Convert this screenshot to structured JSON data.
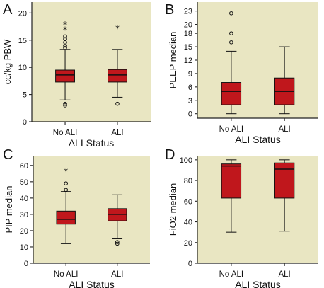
{
  "chart_data": [
    {
      "panel": "A",
      "type": "box",
      "xlabel": "ALI Status",
      "ylabel": "cc/kg PBW",
      "ylim": [
        0,
        22
      ],
      "yticks": [
        0,
        5,
        10,
        15,
        20
      ],
      "categories": [
        "No ALI",
        "ALI"
      ],
      "colors": {
        "box": "#c0171c",
        "background": "#e9e6c2"
      },
      "boxes": [
        {
          "q1": 7.3,
          "median": 8.6,
          "q3": 9.5,
          "whisker_low": 4.0,
          "whisker_high": 13.3,
          "outliers_circle": [
            3.0,
            3.3,
            13.6,
            14.0,
            14.6,
            15.2,
            15.7
          ],
          "outliers_star": [
            17.1,
            18.1
          ]
        },
        {
          "q1": 7.3,
          "median": 8.6,
          "q3": 9.6,
          "whisker_low": 4.5,
          "whisker_high": 13.3,
          "outliers_circle": [
            3.3
          ],
          "outliers_star": [
            17.4
          ]
        }
      ]
    },
    {
      "panel": "B",
      "type": "box",
      "xlabel": "ALI Status",
      "ylabel": "PEEP median",
      "ylim": [
        -1,
        25
      ],
      "yticks": [
        0,
        3,
        6,
        9,
        12,
        15,
        18,
        20,
        23
      ],
      "categories": [
        "No ALI",
        "ALI"
      ],
      "colors": {
        "box": "#c0171c",
        "background": "#e9e6c2"
      },
      "boxes": [
        {
          "q1": 2,
          "median": 5,
          "q3": 7,
          "whisker_low": 0,
          "whisker_high": 14,
          "outliers_circle": [
            16,
            18,
            22.5
          ],
          "outliers_star": []
        },
        {
          "q1": 2,
          "median": 5,
          "q3": 8,
          "whisker_low": 0,
          "whisker_high": 15,
          "outliers_circle": [],
          "outliers_star": []
        }
      ]
    },
    {
      "panel": "C",
      "type": "box",
      "xlabel": "ALI Status",
      "ylabel": "PIP median",
      "ylim": [
        0,
        66
      ],
      "yticks": [
        0,
        10,
        20,
        30,
        40,
        50,
        60
      ],
      "categories": [
        "No ALI",
        "ALI"
      ],
      "colors": {
        "box": "#c0171c",
        "background": "#e9e6c2"
      },
      "boxes": [
        {
          "q1": 24,
          "median": 27,
          "q3": 32,
          "whisker_low": 12,
          "whisker_high": 44,
          "outliers_circle": [
            45,
            49
          ],
          "outliers_star": [
            57
          ]
        },
        {
          "q1": 26,
          "median": 30,
          "q3": 33.5,
          "whisker_low": 15,
          "whisker_high": 42,
          "outliers_circle": [
            12,
            13
          ],
          "outliers_star": []
        }
      ]
    },
    {
      "panel": "D",
      "type": "box",
      "xlabel": "ALI Status",
      "ylabel": "FiO2 median",
      "ylim": [
        0,
        104
      ],
      "yticks": [
        0,
        20,
        40,
        60,
        80,
        100
      ],
      "categories": [
        "No ALI",
        "ALI"
      ],
      "colors": {
        "box": "#c0171c",
        "background": "#e9e6c2"
      },
      "boxes": [
        {
          "q1": 63,
          "median": 94,
          "q3": 96,
          "whisker_low": 30,
          "whisker_high": 100,
          "outliers_circle": [],
          "outliers_star": []
        },
        {
          "q1": 63,
          "median": 91,
          "q3": 97,
          "whisker_low": 31,
          "whisker_high": 100,
          "outliers_circle": [],
          "outliers_star": []
        }
      ]
    }
  ]
}
